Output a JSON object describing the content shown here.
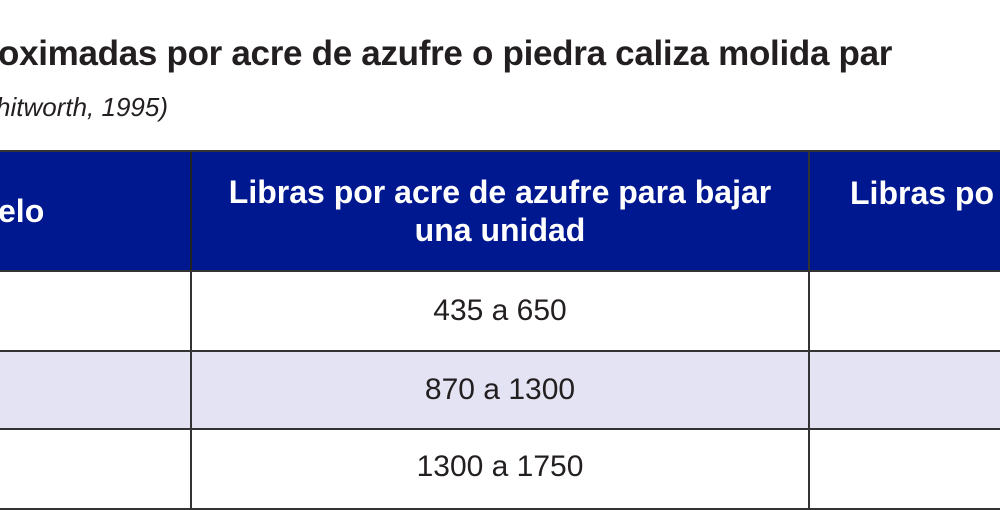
{
  "document": {
    "title": "oximadas por acre de azufre o piedra caliza molida par",
    "subtitle": "hitworth, 1995)"
  },
  "table": {
    "colors": {
      "header_bg": "#00188f",
      "alt_row_bg": "#e4e3f3"
    },
    "headers": [
      "elo",
      "Libras por acre de azufre para bajar una unidad",
      "Libras po"
    ],
    "rows": [
      [
        "",
        "435 a 650",
        ""
      ],
      [
        "",
        "870 a 1300",
        ""
      ],
      [
        "",
        "1300 a 1750",
        ""
      ]
    ]
  }
}
